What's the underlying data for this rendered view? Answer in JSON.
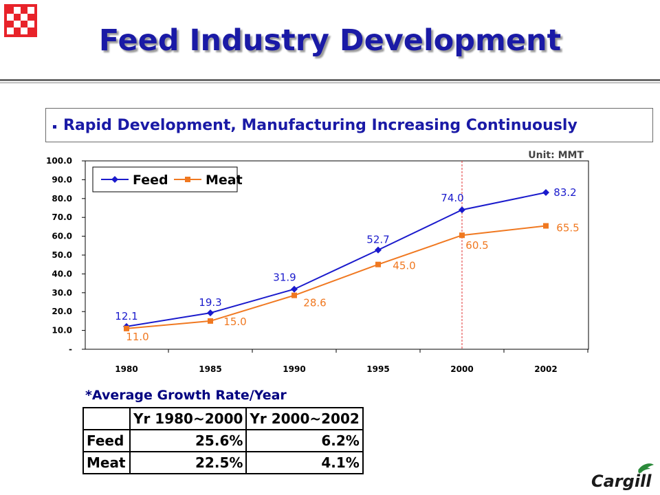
{
  "title": "Feed Industry Development",
  "subtitle": "Rapid Development, Manufacturing Increasing Continuously",
  "unit_label": "Unit: MMT",
  "colors": {
    "title": "#1a1aa6",
    "feed": "#1a1acc",
    "meat": "#f07820",
    "divider": "#e03030",
    "logo_red": "#e8232a",
    "cargill_text": "#1a1a1a",
    "cargill_leaf": "#2a8a3a"
  },
  "icons": {
    "company_mark": "red-checkerboard-logo",
    "brand_logo": "cargill-logo"
  },
  "chart_data": {
    "type": "line",
    "categories": [
      "1980",
      "1985",
      "1990",
      "1995",
      "2000",
      "2002"
    ],
    "series": [
      {
        "name": "Feed",
        "values": [
          12.1,
          19.3,
          31.9,
          52.7,
          74.0,
          83.2
        ],
        "labels": [
          "12.1",
          "19.3",
          "31.9",
          "52.7",
          "74.0",
          "83.2"
        ]
      },
      {
        "name": "Meat",
        "values": [
          11.0,
          15.0,
          28.6,
          45.0,
          60.5,
          65.5
        ],
        "labels": [
          "11.0",
          "15.0",
          "28.6",
          "45.0",
          "60.5",
          "65.5"
        ]
      }
    ],
    "ylim": [
      0,
      100
    ],
    "y_ticks": [
      "-",
      "10.0",
      "20.0",
      "30.0",
      "40.0",
      "50.0",
      "60.0",
      "70.0",
      "80.0",
      "90.0",
      "100.0"
    ],
    "title": "",
    "xlabel": "",
    "ylabel": "",
    "legend_position": "top-left",
    "grid": false,
    "vertical_marker_category": "2000"
  },
  "growth": {
    "title": "*Average Growth Rate/Year",
    "headers": [
      "",
      "Yr 1980~2000",
      "Yr 2000~2002"
    ],
    "rows": [
      [
        "Feed",
        "25.6%",
        "6.2%"
      ],
      [
        "Meat",
        "22.5%",
        "4.1%"
      ]
    ]
  },
  "brand": {
    "name": "Cargill"
  }
}
